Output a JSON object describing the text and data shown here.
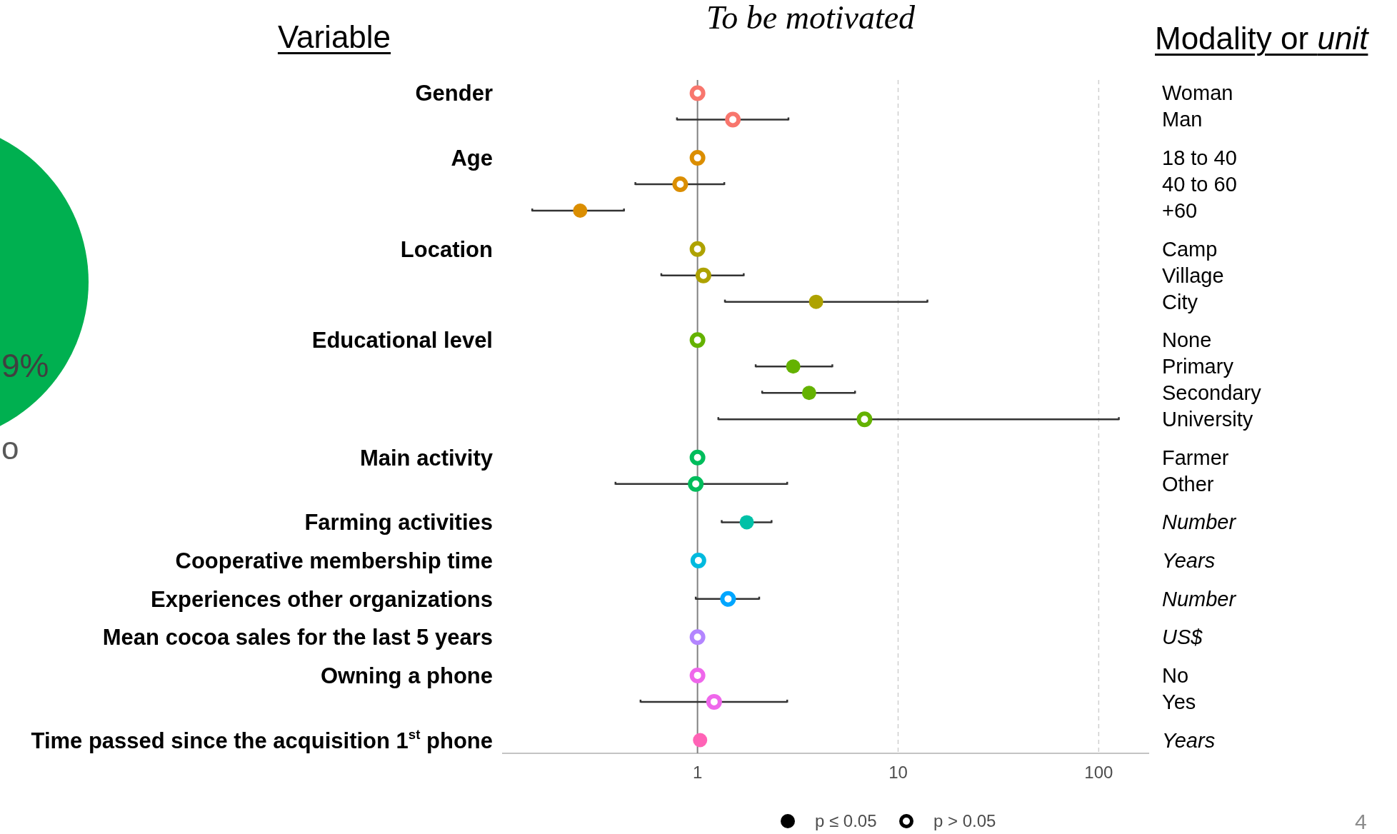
{
  "chart_data": {
    "type": "scatter",
    "orientation": "horizontal",
    "title": "To be motivated",
    "annotations": [
      "Variable",
      "Modality or unit",
      "p ≤ 0.05",
      "p > 0.05",
      "9%",
      "o",
      "4"
    ],
    "categories": [
      "Gender",
      null,
      "Age",
      null,
      null,
      "Location",
      null,
      null,
      "Educational level",
      null,
      null,
      null,
      "Main activity",
      null,
      "Farming activities",
      "Cooperative membership time",
      "Experiences other organizations",
      "Mean cocoa sales for the last 5 years",
      "Owning a phone",
      null,
      "Time passed since the acquisition 1$^{st}$ phone"
    ],
    "y2_categories": [
      "Woman",
      "Man",
      "18 to 40",
      "40 to 60",
      "+60",
      "Camp",
      "Village",
      "City",
      "None",
      "Primary",
      "Secondary",
      "University",
      "Farmer",
      "Other",
      "Number",
      "Years",
      "Number",
      "US$",
      "No",
      "Yes",
      "Years"
    ],
    "series": [
      {
        "marker": "circle",
        "values": [
          null,
          null,
          null,
          null,
          0.26,
          null,
          null,
          3.9,
          null,
          3.0,
          3.6,
          null,
          null,
          null,
          1.76,
          null,
          null,
          null,
          null,
          null,
          1.03
        ],
        "colors": [
          null,
          null,
          null,
          null,
          "#db8e00",
          null,
          null,
          "#aea200",
          null,
          "#64b200",
          "#64b200",
          null,
          null,
          null,
          "#00c1a7",
          null,
          null,
          null,
          null,
          null,
          "#ff63b6"
        ],
        "errors": [
          null,
          null,
          null,
          null,
          [
            0.15,
            0.43
          ],
          null,
          null,
          [
            1.37,
            14
          ],
          null,
          [
            1.95,
            4.7
          ],
          [
            2.1,
            6.1
          ],
          null,
          null,
          null,
          [
            1.32,
            2.34
          ],
          null,
          null,
          null,
          null,
          null,
          null
        ]
      },
      {
        "marker": "circle-open",
        "values": [
          1,
          1.5,
          1,
          0.82,
          null,
          1,
          1.07,
          null,
          1,
          null,
          null,
          6.8,
          1,
          0.98,
          null,
          1.01,
          1.42,
          1,
          1,
          1.21,
          null
        ],
        "colors": [
          "#f8766d",
          "#f8766d",
          "#db8e00",
          "#db8e00",
          null,
          "#aea200",
          "#aea200",
          null,
          "#64b200",
          null,
          null,
          "#64b200",
          "#00bd5c",
          "#00bd5c",
          null,
          "#00bade",
          "#00a6ff",
          "#b385ff",
          "#ef67eb",
          "#ef67eb",
          null
        ],
        "errors": [
          null,
          [
            0.79,
            2.84
          ],
          null,
          [
            0.49,
            1.36
          ],
          null,
          null,
          [
            0.66,
            1.7
          ],
          null,
          null,
          null,
          null,
          [
            1.27,
            126
          ],
          null,
          [
            0.39,
            2.8
          ],
          null,
          null,
          [
            0.98,
            2.03
          ],
          null,
          null,
          [
            0.52,
            2.8
          ],
          null
        ]
      }
    ],
    "log": "x",
    "xlim": [
      0.107,
      177
    ],
    "xticks": [
      1,
      10,
      100
    ],
    "grid": "x",
    "ref_lines": [
      {
        "axis": "x",
        "value": 1,
        "color": "#808080"
      }
    ]
  }
}
